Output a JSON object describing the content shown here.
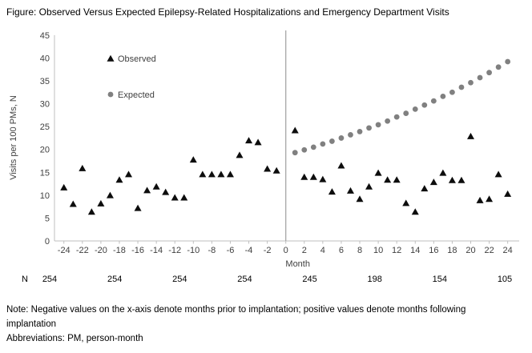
{
  "title": "Figure: Observed Versus Expected Epilepsy-Related Hospitalizations and Emergency Department Visits",
  "notes": {
    "note": "Note: Negative values on the x-axis denote months prior to implantation; positive values denote months following implantation",
    "abbreviations": "Abbreviations: PM, person-month"
  },
  "n_row": {
    "label": "N",
    "values": [
      "254",
      "254",
      "254",
      "254",
      "245",
      "198",
      "154",
      "105"
    ]
  },
  "chart_data": {
    "type": "scatter",
    "xlabel": "Month",
    "ylabel": "Visits per 100 PMs, N",
    "xlim": [
      -25,
      25
    ],
    "ylim": [
      0,
      45
    ],
    "x_ticks": [
      -24,
      -22,
      -20,
      -18,
      -16,
      -14,
      -12,
      -10,
      -8,
      -6,
      -4,
      -2,
      0,
      2,
      4,
      6,
      8,
      10,
      12,
      14,
      16,
      18,
      20,
      22,
      24
    ],
    "y_ticks": [
      0,
      5,
      10,
      15,
      20,
      25,
      30,
      35,
      40,
      45
    ],
    "divider_x": 0,
    "grid": false,
    "legend_position": "upper-left-inside",
    "colors": {
      "observed": "#0d0d0d",
      "expected": "#808080",
      "axis": "#bfbfbf",
      "divider": "#a6a6a6",
      "tick_text": "#404040"
    },
    "series": [
      {
        "name": "Observed",
        "marker": "triangle",
        "color": "#0d0d0d",
        "points": [
          [
            -24,
            11.7
          ],
          [
            -23,
            8.1
          ],
          [
            -22,
            15.9
          ],
          [
            -21,
            6.4
          ],
          [
            -20,
            8.2
          ],
          [
            -19,
            10.0
          ],
          [
            -18,
            13.4
          ],
          [
            -17,
            14.6
          ],
          [
            -16,
            7.2
          ],
          [
            -15,
            11.1
          ],
          [
            -14,
            11.9
          ],
          [
            -13,
            10.7
          ],
          [
            -12,
            9.5
          ],
          [
            -11,
            9.5
          ],
          [
            -10,
            17.8
          ],
          [
            -9,
            14.6
          ],
          [
            -8,
            14.6
          ],
          [
            -7,
            14.6
          ],
          [
            -6,
            14.6
          ],
          [
            -5,
            18.8
          ],
          [
            -4,
            22.0
          ],
          [
            -3,
            21.6
          ],
          [
            -2,
            15.8
          ],
          [
            -1,
            15.4
          ],
          [
            1,
            24.2
          ],
          [
            2,
            14.0
          ],
          [
            3,
            14.0
          ],
          [
            4,
            13.5
          ],
          [
            5,
            10.8
          ],
          [
            6,
            16.5
          ],
          [
            7,
            11.0
          ],
          [
            8,
            9.2
          ],
          [
            9,
            11.9
          ],
          [
            10,
            14.9
          ],
          [
            11,
            13.4
          ],
          [
            12,
            13.4
          ],
          [
            13,
            8.3
          ],
          [
            14,
            6.4
          ],
          [
            15,
            11.5
          ],
          [
            16,
            12.9
          ],
          [
            17,
            14.9
          ],
          [
            18,
            13.3
          ],
          [
            19,
            13.3
          ],
          [
            20,
            22.9
          ],
          [
            21,
            8.9
          ],
          [
            22,
            9.2
          ],
          [
            23,
            14.6
          ],
          [
            24,
            10.3
          ]
        ]
      },
      {
        "name": "Expected",
        "marker": "circle",
        "color": "#808080",
        "points": [
          [
            1,
            19.3
          ],
          [
            2,
            19.9
          ],
          [
            3,
            20.5
          ],
          [
            4,
            21.2
          ],
          [
            5,
            21.8
          ],
          [
            6,
            22.5
          ],
          [
            7,
            23.2
          ],
          [
            8,
            23.9
          ],
          [
            9,
            24.7
          ],
          [
            10,
            25.4
          ],
          [
            11,
            26.2
          ],
          [
            12,
            27.1
          ],
          [
            13,
            27.9
          ],
          [
            14,
            28.8
          ],
          [
            15,
            29.7
          ],
          [
            16,
            30.6
          ],
          [
            17,
            31.6
          ],
          [
            18,
            32.5
          ],
          [
            19,
            33.6
          ],
          [
            20,
            34.6
          ],
          [
            21,
            35.7
          ],
          [
            22,
            36.8
          ],
          [
            23,
            38.0
          ],
          [
            24,
            39.2
          ]
        ]
      }
    ]
  }
}
